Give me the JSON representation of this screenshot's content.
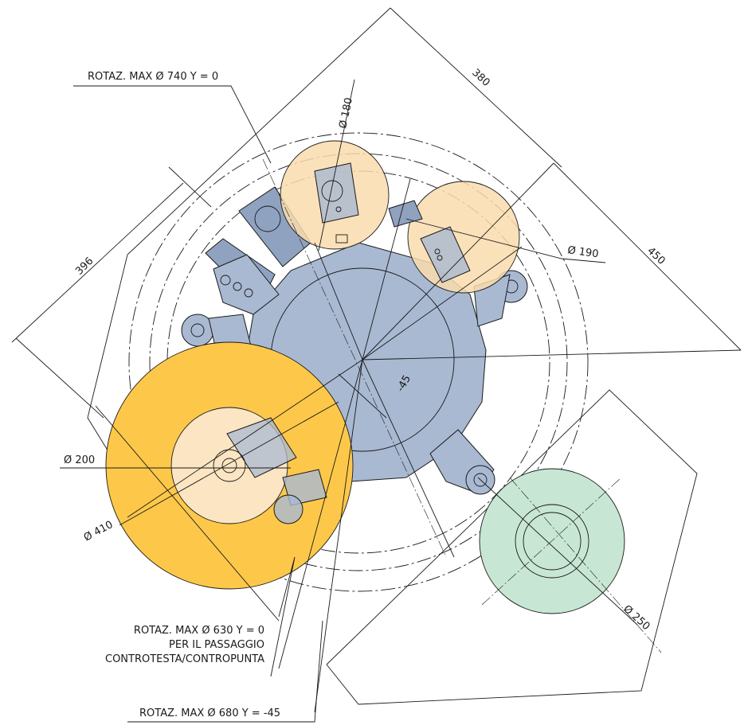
{
  "colors": {
    "turret_body": "#a9b9d2",
    "tool_zone_light": "#f9dcae",
    "tool_zone_large": "#fdc84a",
    "tool_zone_inner": "#fbe5c2",
    "spindle_zone": "#c8e6d4",
    "line": "#1a1a1a"
  },
  "labels": {
    "rot_740": "ROTAZ. MAX Ø 740 Y = 0",
    "rot_630_line1": "ROTAZ. MAX Ø 630 Y = 0",
    "rot_630_line2": "PER IL PASSAGGIO",
    "rot_630_line3": "CONTROTESTA/CONTROPUNTA",
    "rot_680": "ROTAZ. MAX Ø 680 Y = -45"
  },
  "dimensions": {
    "d180": "Ø 180",
    "d190": "Ø 190",
    "d200": "Ø 200",
    "d410": "Ø 410",
    "d250": "Ø 250",
    "len380": "380",
    "len450": "450",
    "len396": "396",
    "angle45": "-45"
  }
}
